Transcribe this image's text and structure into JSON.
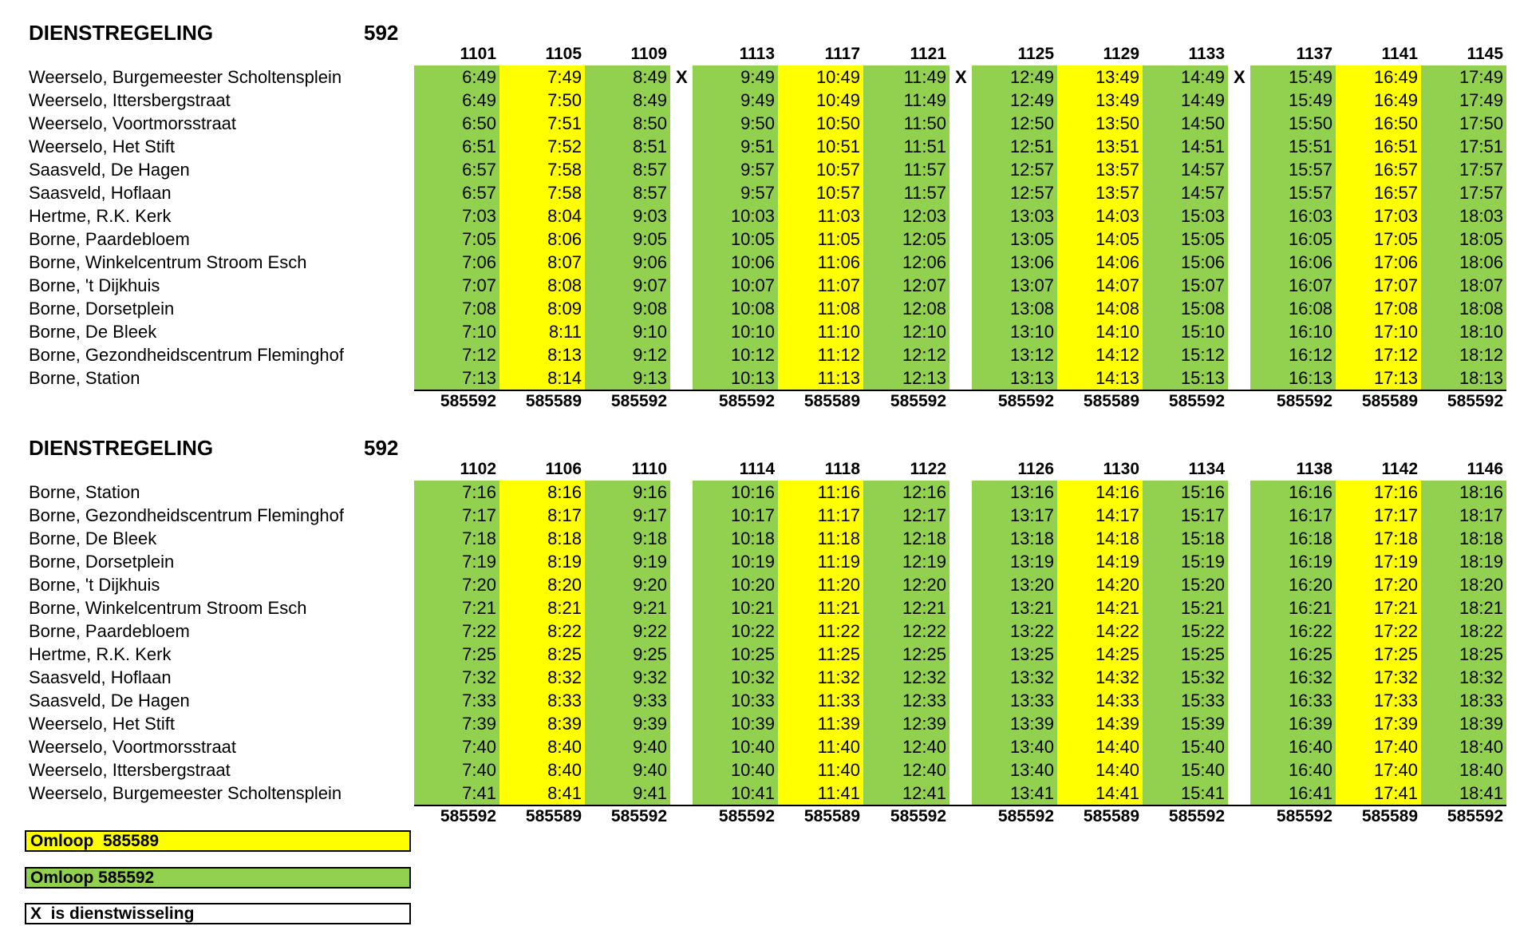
{
  "colors": {
    "green": "#92D050",
    "yellow": "#FFFF00"
  },
  "upper": {
    "title": "DIENSTREGELING",
    "route": "592",
    "trips": [
      "1101",
      "1105",
      "1109",
      "1113",
      "1117",
      "1121",
      "1125",
      "1129",
      "1133",
      "1137",
      "1141",
      "1145"
    ],
    "omloop": [
      "585592",
      "585589",
      "585592",
      "585592",
      "585589",
      "585592",
      "585592",
      "585589",
      "585592",
      "585592",
      "585589",
      "585592"
    ],
    "x_marks": [
      "X",
      "X",
      "X"
    ],
    "stops": [
      {
        "name": "Weerselo, Burgemeester Scholtensplein",
        "times": [
          "6:49",
          "7:49",
          "8:49",
          "9:49",
          "10:49",
          "11:49",
          "12:49",
          "13:49",
          "14:49",
          "15:49",
          "16:49",
          "17:49"
        ]
      },
      {
        "name": "Weerselo, Ittersbergstraat",
        "times": [
          "6:49",
          "7:50",
          "8:49",
          "9:49",
          "10:49",
          "11:49",
          "12:49",
          "13:49",
          "14:49",
          "15:49",
          "16:49",
          "17:49"
        ]
      },
      {
        "name": "Weerselo, Voortmorsstraat",
        "times": [
          "6:50",
          "7:51",
          "8:50",
          "9:50",
          "10:50",
          "11:50",
          "12:50",
          "13:50",
          "14:50",
          "15:50",
          "16:50",
          "17:50"
        ]
      },
      {
        "name": "Weerselo, Het Stift",
        "times": [
          "6:51",
          "7:52",
          "8:51",
          "9:51",
          "10:51",
          "11:51",
          "12:51",
          "13:51",
          "14:51",
          "15:51",
          "16:51",
          "17:51"
        ]
      },
      {
        "name": "Saasveld, De Hagen",
        "times": [
          "6:57",
          "7:58",
          "8:57",
          "9:57",
          "10:57",
          "11:57",
          "12:57",
          "13:57",
          "14:57",
          "15:57",
          "16:57",
          "17:57"
        ]
      },
      {
        "name": "Saasveld, Hoflaan",
        "times": [
          "6:57",
          "7:58",
          "8:57",
          "9:57",
          "10:57",
          "11:57",
          "12:57",
          "13:57",
          "14:57",
          "15:57",
          "16:57",
          "17:57"
        ]
      },
      {
        "name": "Hertme, R.K. Kerk",
        "times": [
          "7:03",
          "8:04",
          "9:03",
          "10:03",
          "11:03",
          "12:03",
          "13:03",
          "14:03",
          "15:03",
          "16:03",
          "17:03",
          "18:03"
        ]
      },
      {
        "name": "Borne, Paardebloem",
        "times": [
          "7:05",
          "8:06",
          "9:05",
          "10:05",
          "11:05",
          "12:05",
          "13:05",
          "14:05",
          "15:05",
          "16:05",
          "17:05",
          "18:05"
        ]
      },
      {
        "name": "Borne, Winkelcentrum Stroom Esch",
        "times": [
          "7:06",
          "8:07",
          "9:06",
          "10:06",
          "11:06",
          "12:06",
          "13:06",
          "14:06",
          "15:06",
          "16:06",
          "17:06",
          "18:06"
        ]
      },
      {
        "name": "Borne, 't Dijkhuis",
        "times": [
          "7:07",
          "8:08",
          "9:07",
          "10:07",
          "11:07",
          "12:07",
          "13:07",
          "14:07",
          "15:07",
          "16:07",
          "17:07",
          "18:07"
        ]
      },
      {
        "name": "Borne, Dorsetplein",
        "times": [
          "7:08",
          "8:09",
          "9:08",
          "10:08",
          "11:08",
          "12:08",
          "13:08",
          "14:08",
          "15:08",
          "16:08",
          "17:08",
          "18:08"
        ]
      },
      {
        "name": "Borne, De Bleek",
        "times": [
          "7:10",
          "8:11",
          "9:10",
          "10:10",
          "11:10",
          "12:10",
          "13:10",
          "14:10",
          "15:10",
          "16:10",
          "17:10",
          "18:10"
        ]
      },
      {
        "name": "Borne, Gezondheidscentrum Fleminghof",
        "times": [
          "7:12",
          "8:13",
          "9:12",
          "10:12",
          "11:12",
          "12:12",
          "13:12",
          "14:12",
          "15:12",
          "16:12",
          "17:12",
          "18:12"
        ]
      },
      {
        "name": "Borne, Station",
        "times": [
          "7:13",
          "8:14",
          "9:13",
          "10:13",
          "11:13",
          "12:13",
          "13:13",
          "14:13",
          "15:13",
          "16:13",
          "17:13",
          "18:13"
        ]
      }
    ]
  },
  "lower": {
    "title": "DIENSTREGELING",
    "route": "592",
    "trips": [
      "1102",
      "1106",
      "1110",
      "1114",
      "1118",
      "1122",
      "1126",
      "1130",
      "1134",
      "1138",
      "1142",
      "1146"
    ],
    "omloop": [
      "585592",
      "585589",
      "585592",
      "585592",
      "585589",
      "585592",
      "585592",
      "585589",
      "585592",
      "585592",
      "585589",
      "585592"
    ],
    "stops": [
      {
        "name": "Borne, Station",
        "times": [
          "7:16",
          "8:16",
          "9:16",
          "10:16",
          "11:16",
          "12:16",
          "13:16",
          "14:16",
          "15:16",
          "16:16",
          "17:16",
          "18:16"
        ]
      },
      {
        "name": "Borne, Gezondheidscentrum Fleminghof",
        "times": [
          "7:17",
          "8:17",
          "9:17",
          "10:17",
          "11:17",
          "12:17",
          "13:17",
          "14:17",
          "15:17",
          "16:17",
          "17:17",
          "18:17"
        ]
      },
      {
        "name": "Borne, De Bleek",
        "times": [
          "7:18",
          "8:18",
          "9:18",
          "10:18",
          "11:18",
          "12:18",
          "13:18",
          "14:18",
          "15:18",
          "16:18",
          "17:18",
          "18:18"
        ]
      },
      {
        "name": "Borne, Dorsetplein",
        "times": [
          "7:19",
          "8:19",
          "9:19",
          "10:19",
          "11:19",
          "12:19",
          "13:19",
          "14:19",
          "15:19",
          "16:19",
          "17:19",
          "18:19"
        ]
      },
      {
        "name": "Borne, 't Dijkhuis",
        "times": [
          "7:20",
          "8:20",
          "9:20",
          "10:20",
          "11:20",
          "12:20",
          "13:20",
          "14:20",
          "15:20",
          "16:20",
          "17:20",
          "18:20"
        ]
      },
      {
        "name": "Borne, Winkelcentrum Stroom Esch",
        "times": [
          "7:21",
          "8:21",
          "9:21",
          "10:21",
          "11:21",
          "12:21",
          "13:21",
          "14:21",
          "15:21",
          "16:21",
          "17:21",
          "18:21"
        ]
      },
      {
        "name": "Borne, Paardebloem",
        "times": [
          "7:22",
          "8:22",
          "9:22",
          "10:22",
          "11:22",
          "12:22",
          "13:22",
          "14:22",
          "15:22",
          "16:22",
          "17:22",
          "18:22"
        ]
      },
      {
        "name": "Hertme, R.K. Kerk",
        "times": [
          "7:25",
          "8:25",
          "9:25",
          "10:25",
          "11:25",
          "12:25",
          "13:25",
          "14:25",
          "15:25",
          "16:25",
          "17:25",
          "18:25"
        ]
      },
      {
        "name": "Saasveld, Hoflaan",
        "times": [
          "7:32",
          "8:32",
          "9:32",
          "10:32",
          "11:32",
          "12:32",
          "13:32",
          "14:32",
          "15:32",
          "16:32",
          "17:32",
          "18:32"
        ]
      },
      {
        "name": "Saasveld, De Hagen",
        "times": [
          "7:33",
          "8:33",
          "9:33",
          "10:33",
          "11:33",
          "12:33",
          "13:33",
          "14:33",
          "15:33",
          "16:33",
          "17:33",
          "18:33"
        ]
      },
      {
        "name": "Weerselo, Het Stift",
        "times": [
          "7:39",
          "8:39",
          "9:39",
          "10:39",
          "11:39",
          "12:39",
          "13:39",
          "14:39",
          "15:39",
          "16:39",
          "17:39",
          "18:39"
        ]
      },
      {
        "name": "Weerselo, Voortmorsstraat",
        "times": [
          "7:40",
          "8:40",
          "9:40",
          "10:40",
          "11:40",
          "12:40",
          "13:40",
          "14:40",
          "15:40",
          "16:40",
          "17:40",
          "18:40"
        ]
      },
      {
        "name": "Weerselo, Ittersbergstraat",
        "times": [
          "7:40",
          "8:40",
          "9:40",
          "10:40",
          "11:40",
          "12:40",
          "13:40",
          "14:40",
          "15:40",
          "16:40",
          "17:40",
          "18:40"
        ]
      },
      {
        "name": "Weerselo, Burgemeester Scholtensplein",
        "times": [
          "7:41",
          "8:41",
          "9:41",
          "10:41",
          "11:41",
          "12:41",
          "13:41",
          "14:41",
          "15:41",
          "16:41",
          "17:41",
          "18:41"
        ]
      }
    ]
  },
  "legend": [
    {
      "label": "Omloop  585589",
      "color": "#FFFF00"
    },
    {
      "label": "Omloop 585592",
      "color": "#92D050"
    },
    {
      "label": "X  is dienstwisseling",
      "color": "#FFFFFF"
    }
  ]
}
